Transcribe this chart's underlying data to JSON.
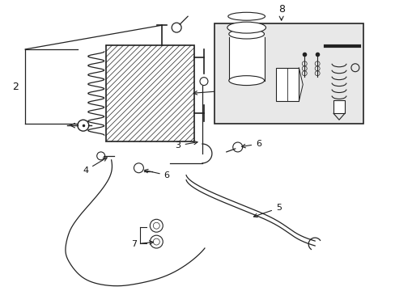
{
  "background_color": "#ffffff",
  "line_color": "#222222",
  "label_color": "#111111",
  "figsize": [
    4.89,
    3.6
  ],
  "dpi": 100,
  "box_bg": "#e8e8e8"
}
